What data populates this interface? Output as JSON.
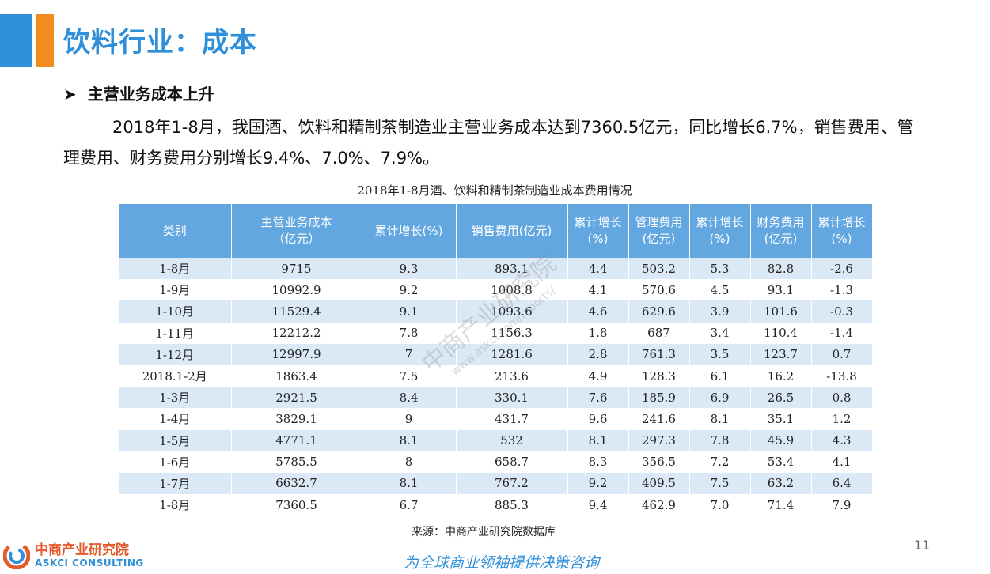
{
  "slide": {
    "title": "饮料行业：成本",
    "section_heading": "主营业务成本上升",
    "paragraph": "2018年1-8月，我国酒、饮料和精制茶制造业主营业务成本达到7360.5亿元，同比增长6.7%，销售费用、管理费用、财务费用分别增长9.4%、7.0%、7.9%。",
    "page_number": "11",
    "slogan": "为全球商业领袖提供决策咨询"
  },
  "table": {
    "caption": "2018年1-8月酒、饮料和精制茶制造业成本费用情况",
    "headers": [
      "类别",
      "主营业务成本\n（亿元）",
      "累计增长(%)",
      "销售费用(亿元)",
      "累计增长\n(%)",
      "管理费用\n(亿元)",
      "累计增长\n(%)",
      "财务费用\n(亿元)",
      "累计增长\n(%)"
    ],
    "rows": [
      [
        "1-8月",
        "9715",
        "9.3",
        "893.1",
        "4.4",
        "503.2",
        "5.3",
        "82.8",
        "-2.6"
      ],
      [
        "1-9月",
        "10992.9",
        "9.2",
        "1008.8",
        "4.1",
        "570.6",
        "4.5",
        "93.1",
        "-1.3"
      ],
      [
        "1-10月",
        "11529.4",
        "9.1",
        "1093.6",
        "4.6",
        "629.6",
        "3.9",
        "101.6",
        "-0.3"
      ],
      [
        "1-11月",
        "12212.2",
        "7.8",
        "1156.3",
        "1.8",
        "687",
        "3.4",
        "110.4",
        "-1.4"
      ],
      [
        "1-12月",
        "12997.9",
        "7",
        "1281.6",
        "2.8",
        "761.3",
        "3.5",
        "123.7",
        "0.7"
      ],
      [
        "2018.1-2月",
        "1863.4",
        "7.5",
        "213.6",
        "4.9",
        "128.3",
        "6.1",
        "16.2",
        "-13.8"
      ],
      [
        "1-3月",
        "2921.5",
        "8.4",
        "330.1",
        "7.6",
        "185.9",
        "6.9",
        "26.5",
        "0.8"
      ],
      [
        "1-4月",
        "3829.1",
        "9",
        "431.7",
        "9.6",
        "241.6",
        "8.1",
        "35.1",
        "1.2"
      ],
      [
        "1-5月",
        "4771.1",
        "8.1",
        "532",
        "8.1",
        "297.3",
        "7.8",
        "45.9",
        "4.3"
      ],
      [
        "1-6月",
        "5785.5",
        "8",
        "658.7",
        "8.3",
        "356.5",
        "7.2",
        "53.4",
        "4.1"
      ],
      [
        "1-7月",
        "6632.7",
        "8.1",
        "767.2",
        "9.2",
        "409.5",
        "7.5",
        "63.2",
        "6.4"
      ],
      [
        "1-8月",
        "7360.5",
        "6.7",
        "885.3",
        "9.4",
        "462.9",
        "7.0",
        "71.4",
        "7.9"
      ]
    ],
    "source": "来源：中商产业研究院数据库"
  },
  "watermark": {
    "text": "中商产业研究院",
    "url": "www.askci.com/reports/"
  },
  "logo": {
    "name_cn": "中商产业研究院",
    "name_en": "ASKCI CONSULTING"
  },
  "colors": {
    "accent_blue": "#2f8fd8",
    "accent_orange": "#f28c1e",
    "header_fill": "#62a7e0",
    "row_stripe": "#dbe9f6",
    "logo_red": "#e55a2b"
  }
}
